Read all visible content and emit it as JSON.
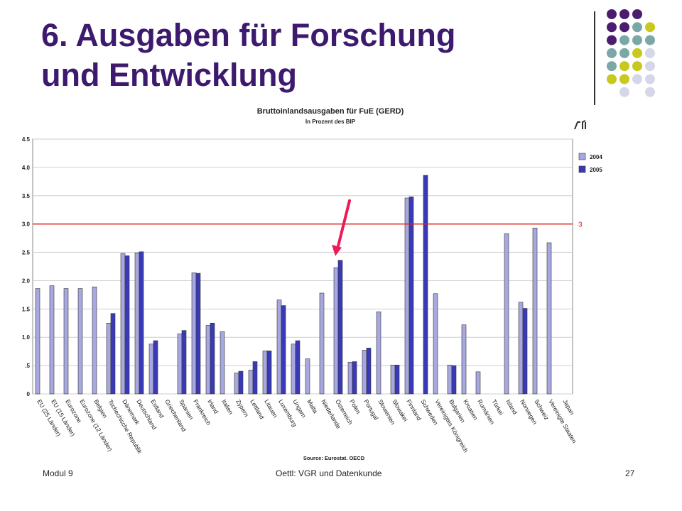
{
  "slide": {
    "title_line1": "6. Ausgaben für Forschung",
    "title_line2": "und Entwicklung",
    "footer_left": "Modul 9",
    "footer_center": "Oettl: VGR und Datenkunde",
    "page_number": "27"
  },
  "decoration": {
    "dot_colors": {
      "purple": "#4b1d6e",
      "teal": "#7ba7a7",
      "yellow": "#c8c81e",
      "lavender": "#d6d6ea"
    },
    "dot_grid": [
      [
        "purple",
        "purple",
        "purple",
        null
      ],
      [
        "purple",
        "purple",
        "teal",
        "yellow"
      ],
      [
        "purple",
        "teal",
        "teal",
        "teal"
      ],
      [
        "teal",
        "teal",
        "yellow",
        "lavender"
      ],
      [
        "teal",
        "yellow",
        "yellow",
        "lavender"
      ],
      [
        "yellow",
        "yellow",
        "lavender",
        "lavender"
      ],
      [
        null,
        "lavender",
        null,
        "lavender"
      ]
    ]
  },
  "chart_data": {
    "type": "bar",
    "title": "Bruttoinlandsausgaben für FuE (GERD)",
    "subtitle": "In Prozent des BIP",
    "source": "Source: Eurostat. OECD",
    "ylim": [
      0,
      4.5
    ],
    "yticks": [
      "0",
      ".5",
      "1.0",
      "1.5",
      "2.0",
      "2.5",
      "3.0",
      "3.5",
      "4.0",
      "4.5"
    ],
    "grid": true,
    "legend_position": "right",
    "reference_line": {
      "value": 3,
      "label": "3",
      "color": "#e0201a"
    },
    "annotation_arrow": {
      "target": "Österreich",
      "color": "#ee1a56"
    },
    "categories": [
      "EU (25 Länder)",
      "EU (15 Länder)",
      "Eurozone",
      "Eurozone (12 Länder)",
      "Belgien",
      "Tschechische Republik",
      "Dänemark",
      "Deutschland",
      "Estland",
      "Griechenland",
      "Spanien",
      "Frankreich",
      "Irland",
      "Italien",
      "Zypern",
      "Lettland",
      "Litauen",
      "Luxemburg",
      "Ungarn",
      "Malta",
      "Niederlande",
      "Österreich",
      "Polen",
      "Portugal",
      "Slowenien",
      "Slowakei",
      "Finnland",
      "Schweden",
      "Vereinigtes Königreich",
      "Bulgarien",
      "Kroatien",
      "Rumänien",
      "Türkei",
      "Island",
      "Norwegen",
      "Schweiz",
      "Vereinigte Staaten",
      "Japan"
    ],
    "series": [
      {
        "name": "2004",
        "color": "#a8a8e0",
        "values": [
          1.86,
          1.91,
          1.86,
          1.86,
          1.89,
          1.25,
          2.48,
          2.49,
          0.88,
          0,
          1.06,
          2.14,
          1.21,
          1.1,
          0.37,
          0.42,
          0.76,
          1.66,
          0.88,
          0.62,
          1.78,
          2.23,
          0.56,
          0.77,
          1.45,
          0.51,
          3.46,
          0,
          1.77,
          0.51,
          1.22,
          0.39,
          0,
          2.83,
          1.62,
          2.93,
          2.67,
          0
        ]
      },
      {
        "name": "2005",
        "color": "#3a3ab8",
        "values": [
          0,
          0,
          0,
          0,
          0,
          1.42,
          2.44,
          2.51,
          0.94,
          0,
          1.12,
          2.13,
          1.25,
          0,
          0.4,
          0.57,
          0.76,
          1.56,
          0.94,
          0,
          0,
          2.36,
          0.57,
          0.81,
          0,
          0.51,
          3.48,
          3.86,
          0,
          0.5,
          0,
          0,
          0,
          0,
          1.51,
          0,
          0,
          0
        ]
      }
    ]
  }
}
